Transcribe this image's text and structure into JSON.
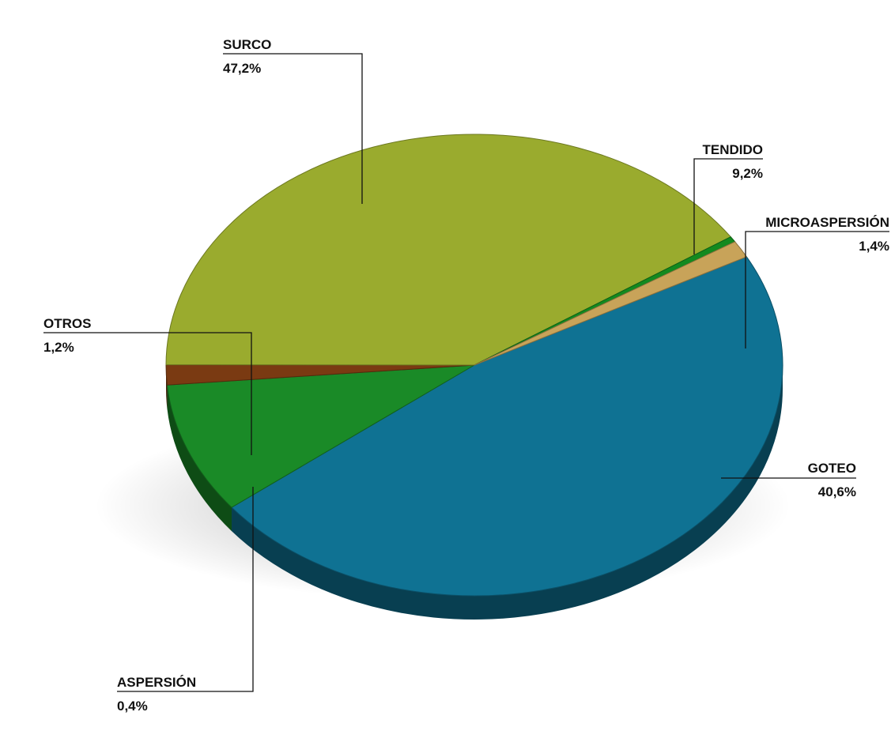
{
  "chart_data": {
    "type": "pie",
    "title": "",
    "three_d": true,
    "legend": "none",
    "slices": [
      {
        "key": "surco",
        "label": "SURCO",
        "value": 47.2,
        "value_label": "47,2%",
        "color": "#0f7293"
      },
      {
        "key": "tendido",
        "label": "TENDIDO",
        "value": 9.2,
        "value_label": "9,2%",
        "color": "#1a8a27"
      },
      {
        "key": "microaspersion",
        "label": "MICROASPERSIÓN",
        "value": 1.4,
        "value_label": "1,4%",
        "color": "#7a3a12"
      },
      {
        "key": "goteo",
        "label": "GOTEO",
        "value": 40.6,
        "value_label": "40,6%",
        "color": "#9aab2e"
      },
      {
        "key": "aspersion",
        "label": "ASPERSIÓN",
        "value": 0.4,
        "value_label": "0,4%",
        "color": "#138a1f"
      },
      {
        "key": "otros",
        "label": "OTROS",
        "value": 1.2,
        "value_label": "1,2%",
        "color": "#c8a359"
      }
    ]
  }
}
